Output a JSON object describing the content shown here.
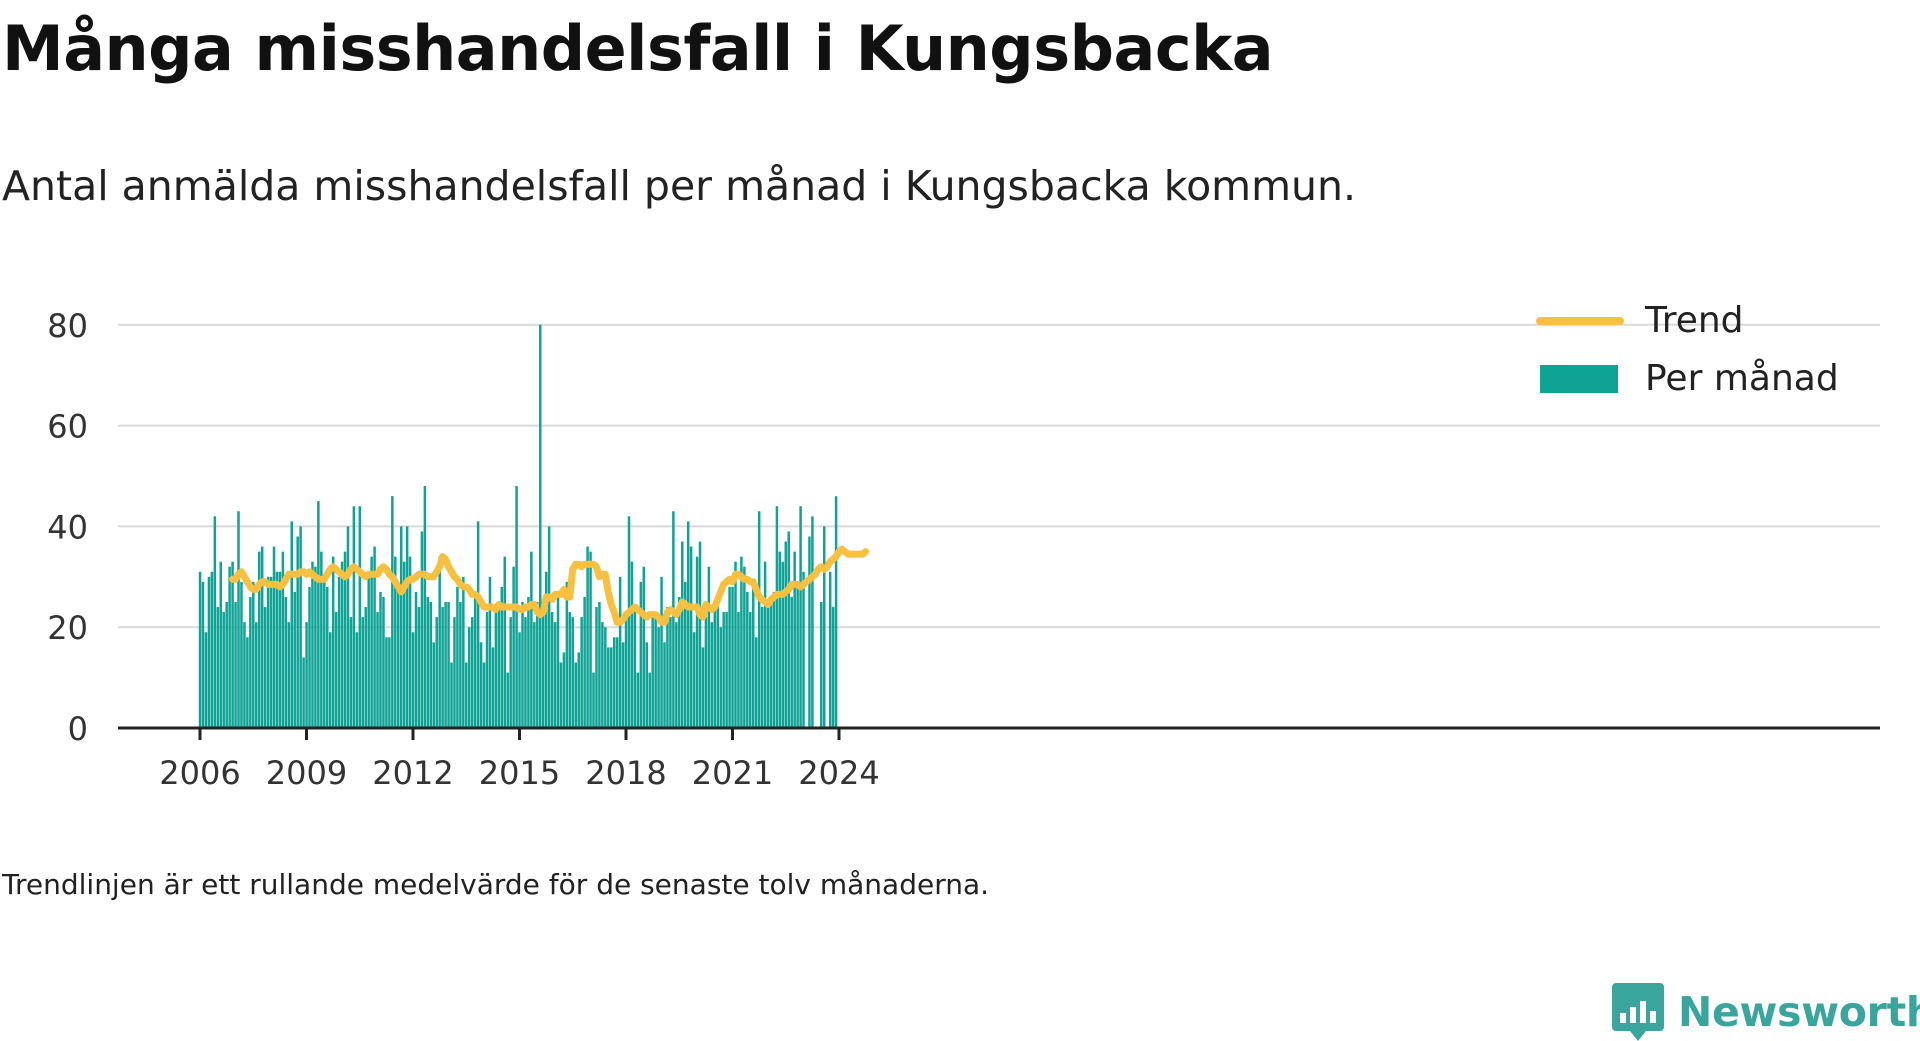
{
  "title": "Många misshandelsfall i Kungsbacka",
  "subtitle": "Antal anmälda misshandelsfall per månad i Kungsbacka kommun.",
  "note": "Trendlinjen är ett rullande medelvärde för de senaste tolv månaderna.",
  "brand": {
    "name": "Newsworthy",
    "logo_icon": "bar-chart-speech-bubble-icon",
    "color": "#3aa59c"
  },
  "colors": {
    "bars": "#0fa396",
    "trend": "#f8c040",
    "grid": "#d9d9d9",
    "axis": "#222222",
    "text": "#333333"
  },
  "chart_data": {
    "type": "bar",
    "x_start": "2006-01",
    "x_ticks": [
      "2006",
      "2009",
      "2012",
      "2015",
      "2018",
      "2021",
      "2024"
    ],
    "ylim": [
      0,
      80
    ],
    "y_ticks": [
      "0",
      "20",
      "40",
      "60",
      "80"
    ],
    "grid": true,
    "legend_position": "top-right",
    "legend": [
      "Trend",
      "Per månad"
    ],
    "series": [
      {
        "name": "Per månad",
        "kind": "bar",
        "values": [
          31,
          29,
          19,
          30,
          31,
          42,
          24,
          33,
          23,
          25,
          32,
          33,
          25,
          43,
          29,
          21,
          18,
          26,
          29,
          21,
          35,
          36,
          24,
          30,
          30,
          36,
          31,
          31,
          35,
          26,
          21,
          41,
          27,
          38,
          40,
          14,
          21,
          28,
          33,
          32,
          45,
          35,
          29,
          28,
          19,
          34,
          23,
          30,
          33,
          35,
          40,
          22,
          44,
          19,
          44,
          22,
          24,
          30,
          34,
          36,
          23,
          27,
          26,
          18,
          18,
          46,
          34,
          29,
          40,
          33,
          40,
          34,
          19,
          27,
          24,
          39,
          48,
          26,
          25,
          17,
          22,
          34,
          24,
          25,
          25,
          13,
          22,
          28,
          25,
          30,
          13,
          20,
          22,
          27,
          41,
          17,
          13,
          23,
          30,
          16,
          24,
          25,
          28,
          34,
          11,
          22,
          32,
          48,
          19,
          25,
          22,
          26,
          35,
          21,
          25,
          80,
          25,
          31,
          40,
          23,
          21,
          26,
          13,
          15,
          29,
          23,
          22,
          13,
          15,
          22,
          26,
          36,
          35,
          11,
          24,
          25,
          21,
          20,
          16,
          16,
          18,
          18,
          30,
          17,
          23,
          42,
          33,
          24,
          11,
          29,
          32,
          17,
          11,
          22,
          22,
          20,
          30,
          17,
          24,
          22,
          43,
          21,
          26,
          37,
          29,
          41,
          36,
          19,
          34,
          37,
          16,
          22,
          32,
          21,
          24,
          24,
          20,
          23,
          23,
          28,
          28,
          33,
          23,
          34,
          32,
          27,
          23,
          29,
          18,
          43,
          24,
          33,
          25,
          25,
          27,
          44,
          35,
          33,
          37,
          39,
          26,
          35,
          29,
          44,
          31,
          0,
          38,
          42,
          0,
          0,
          25,
          40,
          0,
          31,
          24,
          46
        ]
      },
      {
        "name": "Trend",
        "kind": "line",
        "start_index": 11,
        "values": [
          29.5,
          29.5,
          30.5,
          31,
          30,
          29,
          28,
          27.5,
          27.5,
          28.5,
          29,
          29,
          28.5,
          28.5,
          28.5,
          28.5,
          28,
          28.5,
          29.5,
          30.5,
          30.5,
          30.5,
          30.5,
          31,
          31,
          30.5,
          31,
          30.5,
          30,
          29.5,
          29.5,
          29.5,
          30.5,
          31.5,
          32,
          31.5,
          31,
          30.5,
          30,
          30.5,
          31.5,
          32,
          31.5,
          31,
          30.5,
          30,
          30.5,
          30.5,
          30.5,
          30.5,
          31.5,
          32,
          31.5,
          30.5,
          30,
          29,
          28,
          27,
          28,
          29,
          29.5,
          29.5,
          30,
          30.5,
          30.5,
          30.5,
          30,
          30,
          30,
          31,
          32,
          34,
          33.5,
          32,
          31,
          30,
          29.5,
          28.5,
          28,
          28,
          27.5,
          26.5,
          26.5,
          26,
          25,
          24,
          24,
          24,
          24,
          23.5,
          24.5,
          24,
          24,
          24,
          24,
          24,
          24,
          23.5,
          23.5,
          24,
          24,
          24.5,
          24.5,
          23,
          22.5,
          23,
          26,
          26,
          25.5,
          26.5,
          26.5,
          26.5,
          27.5,
          26,
          26,
          31.5,
          32.5,
          32.5,
          32,
          32.5,
          32.5,
          32.5,
          32.5,
          32,
          30,
          30.5,
          30.5,
          27,
          24.5,
          23,
          21,
          21,
          21.5,
          22.5,
          23,
          23.5,
          24,
          23.5,
          23,
          22.5,
          22,
          22.5,
          22.5,
          22.5,
          22,
          21,
          21,
          23,
          23.5,
          23,
          22.5,
          23.5,
          25,
          24.5,
          24,
          24,
          24,
          24,
          22.5,
          22,
          24.5,
          24,
          23.5,
          24,
          25.5,
          27,
          28.5,
          29,
          29.5,
          29,
          30.5,
          30.5,
          30,
          29.5,
          29.5,
          29,
          29,
          27.5,
          26,
          25.5,
          25,
          24.5,
          25.5,
          26,
          26.5,
          26.5,
          26.5,
          27,
          27.5,
          28.5,
          28.5,
          28.5,
          28,
          28.5,
          29,
          29.5,
          30,
          30.5,
          31.5,
          32,
          31.5,
          32,
          33,
          33.5,
          34,
          35,
          35.5,
          35,
          34.5,
          34.5,
          34.5,
          34.5,
          34.5,
          34.5,
          35
        ]
      }
    ]
  }
}
